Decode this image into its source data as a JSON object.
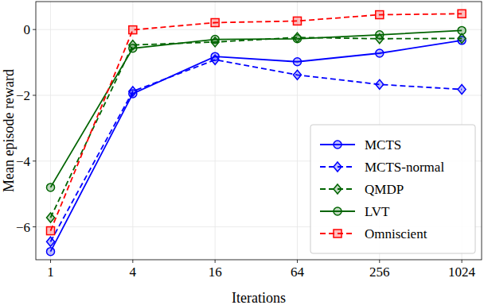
{
  "chart_data": {
    "type": "line",
    "x_label": "Iterations",
    "y_label": "Mean episode reward",
    "x": [
      1,
      4,
      16,
      64,
      256,
      1024
    ],
    "log": "x",
    "xlim": [
      0.78,
      1430
    ],
    "xticks": [
      1,
      4,
      16,
      64,
      256,
      1024
    ],
    "ylim": [
      -7.0,
      0.85
    ],
    "yticks": [
      -6,
      -4,
      -2,
      0
    ],
    "grid": true,
    "legend": "lower right",
    "series": [
      {
        "name": "MCTS",
        "color": "#0000ff",
        "marker": "circle",
        "line_style": "solid",
        "values": [
          -6.75,
          -1.95,
          -0.82,
          -0.98,
          -0.72,
          -0.33
        ]
      },
      {
        "name": "MCTS-normal",
        "color": "#0000ff",
        "marker": "diamond",
        "line_style": "dashed",
        "values": [
          -6.45,
          -1.88,
          -0.92,
          -1.38,
          -1.67,
          -1.82
        ]
      },
      {
        "name": "QMDP",
        "color": "#006400",
        "marker": "diamond",
        "line_style": "dashed",
        "values": [
          -5.72,
          -0.47,
          -0.38,
          -0.24,
          -0.28,
          -0.27
        ]
      },
      {
        "name": "LVT",
        "color": "#006400",
        "marker": "circle",
        "line_style": "solid",
        "values": [
          -4.8,
          -0.57,
          -0.3,
          -0.28,
          -0.16,
          -0.03
        ]
      },
      {
        "name": "Omniscient",
        "color": "#ff0000",
        "marker": "square",
        "line_style": "dashed",
        "values": [
          -6.12,
          -0.01,
          0.21,
          0.26,
          0.45,
          0.48
        ]
      }
    ]
  }
}
